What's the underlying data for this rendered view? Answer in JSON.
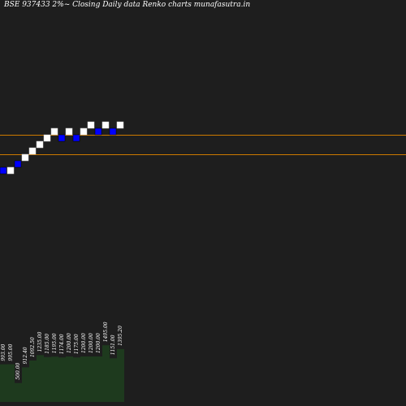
{
  "chart_data": {
    "type": "renko",
    "title": "BSE 937433 2%~  Closing Daily data  Renko  charts munafasutra.in",
    "colors": {
      "background": "#1e1e1e",
      "up_brick": "#ffffff",
      "down_brick": "#0000ff",
      "reference_line": "#cc7a00",
      "volume_bar": "#1e3a1e"
    },
    "renko": {
      "brick_levels": [
        0,
        0,
        1,
        2,
        3,
        4,
        5,
        6,
        5,
        6,
        5,
        6,
        7,
        6,
        7,
        6,
        7
      ],
      "directions": [
        "down",
        "up",
        "down",
        "up",
        "up",
        "up",
        "up",
        "up",
        "down",
        "up",
        "down",
        "up",
        "up",
        "down",
        "up",
        "down",
        "up"
      ]
    },
    "reference_levels": [
      6,
      3
    ],
    "volume": {
      "labels": [
        "993.00",
        "995.00",
        "500.00",
        "912.40",
        "1092.50",
        "1235.00",
        "1185.00",
        "1195.00",
        "1174.00",
        "1200.00",
        "1175.00",
        "1200.00",
        "1200.00",
        "1200.00",
        "1495.00",
        "1151.00",
        "1395.20"
      ],
      "values": [
        993,
        995,
        500,
        912.4,
        1092.5,
        1235,
        1185,
        1195,
        1174,
        1200,
        1175,
        1200,
        1200,
        1200,
        1495,
        1151,
        1395.2
      ]
    }
  }
}
